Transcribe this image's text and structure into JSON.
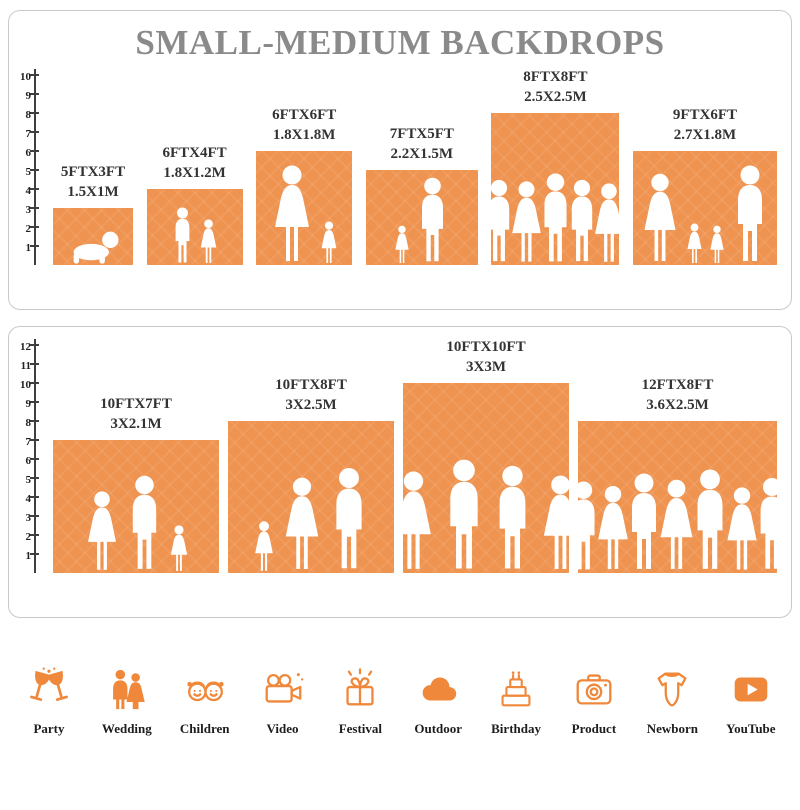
{
  "title": "SMALL-MEDIUM BACKDROPS",
  "colors": {
    "bar": "#ef9350",
    "icon": "#f0883b",
    "title_text": "#8a8a8a",
    "label_text": "#333333",
    "ruler": "#3f3f3f"
  },
  "panels": [
    {
      "name": "small-medium-backdrops",
      "ruler_ticks": [
        1,
        2,
        3,
        4,
        5,
        6,
        7,
        8,
        9,
        10
      ],
      "bars": [
        {
          "size_ft": "5FTX3FT",
          "size_m": "1.5X1M",
          "figures": [
            {
              "type": "baby",
              "h": 34
            }
          ]
        },
        {
          "size_ft": "6FTX4FT",
          "size_m": "1.8X1.2M",
          "figures": [
            {
              "type": "boy",
              "h": 58
            },
            {
              "type": "girl",
              "h": 46
            }
          ]
        },
        {
          "size_ft": "6FTX6FT",
          "size_m": "1.8X1.8M",
          "figures": [
            {
              "type": "woman",
              "h": 100
            },
            {
              "type": "girl",
              "h": 44
            }
          ]
        },
        {
          "size_ft": "7FTX5FT",
          "size_m": "2.2X1.5M",
          "figures": [
            {
              "type": "girl",
              "h": 40
            },
            {
              "type": "man",
              "h": 88
            }
          ]
        },
        {
          "size_ft": "8FTX8FT",
          "size_m": "2.5X2.5M",
          "figures": [
            {
              "type": "man",
              "h": 86
            },
            {
              "type": "woman",
              "h": 84
            },
            {
              "type": "man",
              "h": 92
            },
            {
              "type": "man",
              "h": 86
            },
            {
              "type": "woman",
              "h": 82
            }
          ]
        },
        {
          "size_ft": "9FTX6FT",
          "size_m": "2.7X1.8M",
          "figures": [
            {
              "type": "woman",
              "h": 92
            },
            {
              "type": "girl",
              "h": 42
            },
            {
              "type": "girl",
              "h": 40
            },
            {
              "type": "man",
              "h": 100
            }
          ]
        }
      ]
    },
    {
      "name": "medium-large-backdrops",
      "ruler_ticks": [
        1,
        2,
        3,
        4,
        5,
        6,
        7,
        8,
        9,
        10,
        11,
        12
      ],
      "bars": [
        {
          "size_ft": "10FTX7FT",
          "size_m": "3X2.1M",
          "figures": [
            {
              "type": "woman",
              "h": 82
            },
            {
              "type": "man",
              "h": 98
            },
            {
              "type": "girl",
              "h": 48
            }
          ]
        },
        {
          "size_ft": "10FTX8FT",
          "size_m": "3X2.5M",
          "figures": [
            {
              "type": "girl",
              "h": 52
            },
            {
              "type": "woman",
              "h": 96
            },
            {
              "type": "man",
              "h": 106
            }
          ]
        },
        {
          "size_ft": "10FTX10FT",
          "size_m": "3X3M",
          "figures": [
            {
              "type": "woman",
              "h": 102
            },
            {
              "type": "man",
              "h": 114
            },
            {
              "type": "man",
              "h": 108
            },
            {
              "type": "woman",
              "h": 98
            }
          ]
        },
        {
          "size_ft": "12FTX8FT",
          "size_m": "3.6X2.5M",
          "figures": [
            {
              "type": "man",
              "h": 92
            },
            {
              "type": "woman",
              "h": 88
            },
            {
              "type": "man",
              "h": 100
            },
            {
              "type": "woman",
              "h": 94
            },
            {
              "type": "man",
              "h": 104
            },
            {
              "type": "woman",
              "h": 86
            },
            {
              "type": "man",
              "h": 96
            }
          ]
        }
      ]
    }
  ],
  "categories": [
    {
      "label": "Party",
      "icon": "party-icon"
    },
    {
      "label": "Wedding",
      "icon": "wedding-icon"
    },
    {
      "label": "Children",
      "icon": "children-icon"
    },
    {
      "label": "Video",
      "icon": "video-icon"
    },
    {
      "label": "Festival",
      "icon": "festival-icon"
    },
    {
      "label": "Outdoor",
      "icon": "outdoor-icon"
    },
    {
      "label": "Birthday",
      "icon": "birthday-icon"
    },
    {
      "label": "Product",
      "icon": "product-icon"
    },
    {
      "label": "Newborn",
      "icon": "newborn-icon"
    },
    {
      "label": "YouTube",
      "icon": "youtube-icon"
    }
  ]
}
